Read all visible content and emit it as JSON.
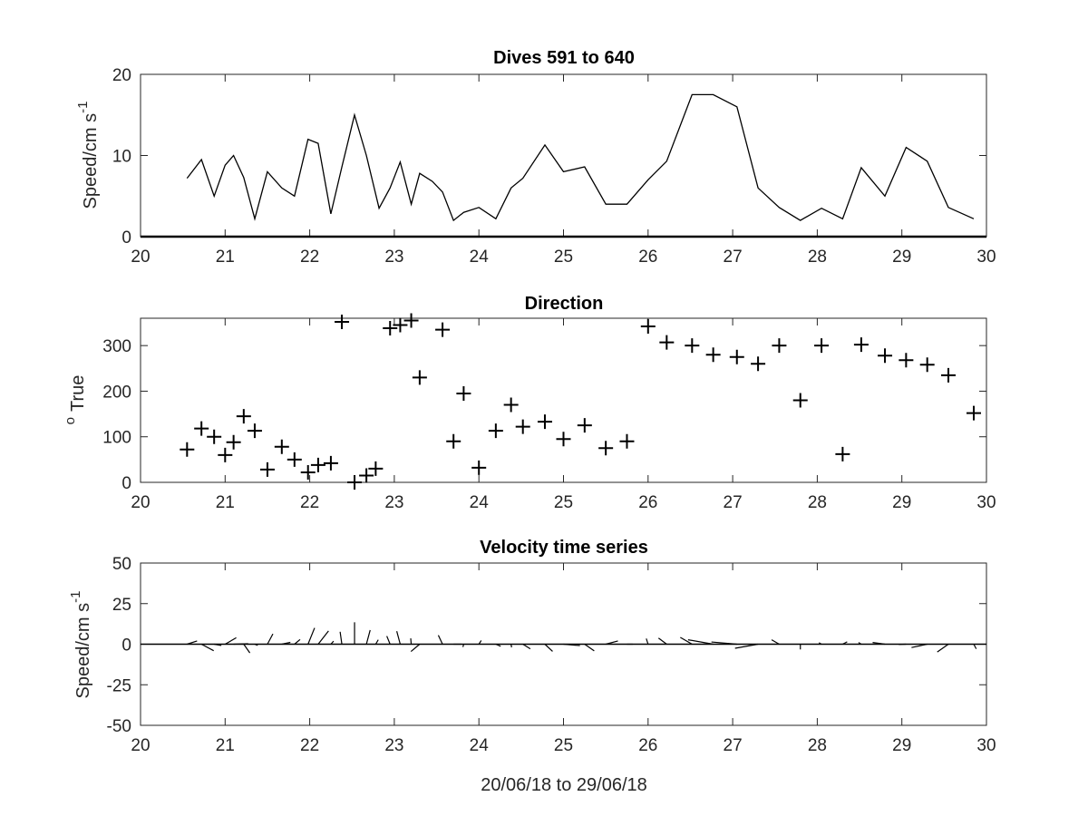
{
  "chart_data": [
    {
      "type": "line",
      "title": "Dives 591 to 640",
      "xlabel": "",
      "ylabel": "Speed/cm s",
      "ylabel_sup": "-1",
      "xlim": [
        20,
        30
      ],
      "ylim": [
        0,
        20
      ],
      "xticks": [
        20,
        21,
        22,
        23,
        24,
        25,
        26,
        27,
        28,
        29,
        30
      ],
      "yticks": [
        0,
        10,
        20
      ],
      "grid": false,
      "series": [
        {
          "x": [
            20.55,
            20.72,
            20.87,
            21.0,
            21.1,
            21.22,
            21.35,
            21.5,
            21.67,
            21.82,
            21.98,
            22.1,
            22.25,
            22.38,
            22.53,
            22.67,
            22.82,
            22.95,
            23.07,
            23.2,
            23.3,
            23.45,
            23.57,
            23.7,
            23.82,
            24.0,
            24.2,
            24.38,
            24.52,
            24.78,
            25.0,
            25.25,
            25.5,
            25.75,
            26.0,
            26.22,
            26.52,
            26.77,
            27.05,
            27.3,
            27.55,
            27.8,
            28.05,
            28.3,
            28.52,
            28.8,
            29.05,
            29.3,
            29.55,
            29.85
          ],
          "y": [
            7.2,
            9.5,
            5.0,
            8.8,
            10.0,
            7.3,
            2.2,
            8.0,
            6.0,
            5.0,
            12.0,
            11.5,
            2.8,
            8.6,
            15.0,
            10.0,
            3.5,
            6.0,
            9.2,
            4.0,
            7.8,
            6.8,
            5.5,
            2.0,
            3.0,
            3.6,
            2.2,
            6.0,
            7.2,
            11.3,
            8.0,
            8.6,
            4.0,
            4.0,
            7.0,
            9.3,
            17.5,
            17.5,
            16.0,
            6.0,
            3.6,
            2.0,
            3.5,
            2.2,
            8.5,
            5.0,
            11.0,
            9.3,
            3.6,
            2.2
          ]
        }
      ]
    },
    {
      "type": "scatter",
      "title": "Direction",
      "xlabel": "",
      "ylabel": "True",
      "ylabel_sup": "o",
      "xlim": [
        20,
        30
      ],
      "ylim": [
        0,
        360
      ],
      "xticks": [
        20,
        21,
        22,
        23,
        24,
        25,
        26,
        27,
        28,
        29,
        30
      ],
      "yticks": [
        0,
        100,
        200,
        300
      ],
      "grid": false,
      "marker": "+",
      "series": [
        {
          "x": [
            20.55,
            20.72,
            20.87,
            21.0,
            21.1,
            21.22,
            21.35,
            21.5,
            21.67,
            21.82,
            21.98,
            22.1,
            22.25,
            22.38,
            22.53,
            22.67,
            22.78,
            22.95,
            23.07,
            23.2,
            23.3,
            23.57,
            23.7,
            23.82,
            24.0,
            24.2,
            24.38,
            24.52,
            24.78,
            25.0,
            25.25,
            25.5,
            25.75,
            26.0,
            26.22,
            26.52,
            26.77,
            27.05,
            27.3,
            27.55,
            27.8,
            28.05,
            28.3,
            28.52,
            28.8,
            29.05,
            29.3,
            29.55,
            29.85
          ],
          "y": [
            72,
            118,
            100,
            60,
            88,
            145,
            113,
            28,
            78,
            50,
            22,
            38,
            42,
            352,
            0,
            15,
            30,
            338,
            345,
            355,
            230,
            335,
            90,
            195,
            32,
            113,
            170,
            122,
            133,
            95,
            125,
            75,
            90,
            342,
            307,
            300,
            280,
            275,
            260,
            300,
            180,
            300,
            62,
            302,
            278,
            268,
            258,
            235,
            152
          ]
        }
      ]
    },
    {
      "type": "line",
      "title": "Velocity time series",
      "xlabel": "20/06/18 to 29/06/18",
      "ylabel": "Speed/cm s",
      "ylabel_sup": "-1",
      "xlim": [
        20,
        30
      ],
      "ylim": [
        -50,
        50
      ],
      "xticks": [
        20,
        21,
        22,
        23,
        24,
        25,
        26,
        27,
        28,
        29,
        30
      ],
      "yticks": [
        -50,
        -25,
        0,
        25,
        50
      ],
      "grid": false,
      "plot_style": "stick vectors (speed, direction) along zero line",
      "zero_line": true
    }
  ]
}
